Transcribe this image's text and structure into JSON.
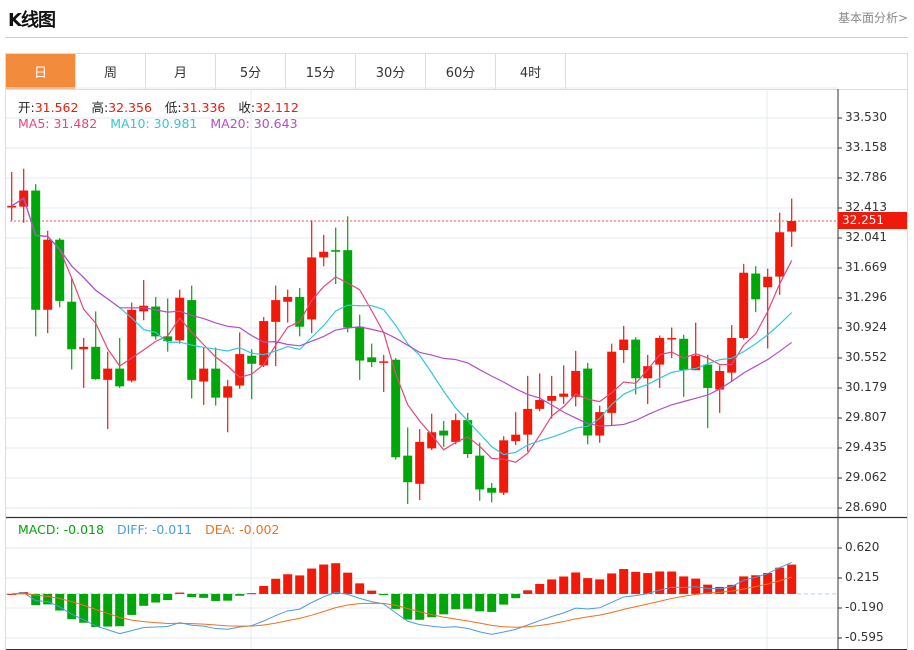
{
  "header": {
    "title": "K线图",
    "link": "基本面分析>"
  },
  "tabs": [
    {
      "label": "日",
      "active": true
    },
    {
      "label": "周"
    },
    {
      "label": "月"
    },
    {
      "label": "5分"
    },
    {
      "label": "15分"
    },
    {
      "label": "30分"
    },
    {
      "label": "60分"
    },
    {
      "label": "4时"
    }
  ],
  "info": {
    "open_label": "开:",
    "open": "31.562",
    "high_label": "高:",
    "high": "32.356",
    "low_label": "低:",
    "low": "31.336",
    "close_label": "收:",
    "close": "32.112"
  },
  "ma": {
    "ma5": "MA5: 31.482",
    "ma10": "MA10: 30.981",
    "ma20": "MA20: 30.643"
  },
  "macd": {
    "macd": "MACD: -0.018",
    "diff": "DIFF: -0.011",
    "dea": "DEA: -0.002"
  },
  "current_price": "32.251",
  "colors": {
    "up": "#f01a0a",
    "down": "#00a60a",
    "ma5": "#e8457c",
    "ma10": "#33c6dc",
    "ma20": "#b24fc6",
    "diff": "#4a9be8",
    "dea": "#f07020",
    "tab_active": "#f28b3c"
  },
  "chart_data": {
    "type": "candlestick",
    "price_axis": {
      "ticks": [
        "33.530",
        "33.158",
        "32.786",
        "32.413",
        "32.041",
        "31.669",
        "31.296",
        "30.924",
        "30.552",
        "30.179",
        "29.807",
        "29.435",
        "29.062",
        "28.690"
      ],
      "range": [
        28.69,
        33.53
      ]
    },
    "macd_axis": {
      "ticks": [
        "0.620",
        "0.215",
        "-0.190",
        "-0.595"
      ],
      "range": [
        -0.595,
        0.62
      ]
    },
    "indicators": [
      "MA5",
      "MA10",
      "MA20",
      "MACD(12,26,9)"
    ],
    "candles": [
      [
        32.42,
        32.86,
        32.26,
        32.44
      ],
      [
        32.43,
        32.9,
        32.23,
        32.63
      ],
      [
        32.63,
        32.71,
        30.82,
        31.15
      ],
      [
        31.15,
        32.13,
        30.86,
        32.02
      ],
      [
        32.02,
        32.04,
        31.18,
        31.26
      ],
      [
        31.25,
        31.54,
        30.41,
        30.66
      ],
      [
        30.66,
        30.8,
        30.18,
        30.69
      ],
      [
        30.69,
        31.13,
        30.28,
        30.29
      ],
      [
        30.28,
        30.63,
        29.67,
        30.42
      ],
      [
        30.42,
        30.8,
        30.18,
        30.2
      ],
      [
        30.27,
        31.24,
        30.25,
        31.15
      ],
      [
        31.13,
        31.52,
        31.02,
        31.2
      ],
      [
        31.19,
        31.31,
        30.78,
        30.82
      ],
      [
        30.82,
        31.29,
        30.63,
        30.76
      ],
      [
        30.77,
        31.4,
        30.73,
        31.3
      ],
      [
        31.27,
        31.45,
        30.05,
        30.28
      ],
      [
        30.26,
        30.68,
        29.97,
        30.42
      ],
      [
        30.42,
        30.68,
        29.96,
        30.06
      ],
      [
        30.06,
        30.28,
        29.63,
        30.2
      ],
      [
        30.21,
        30.87,
        30.17,
        30.6
      ],
      [
        30.58,
        30.66,
        30.04,
        30.48
      ],
      [
        30.46,
        31.06,
        30.44,
        31.01
      ],
      [
        31.0,
        31.45,
        30.45,
        31.27
      ],
      [
        31.25,
        31.4,
        30.99,
        31.31
      ],
      [
        31.31,
        31.42,
        30.82,
        30.94
      ],
      [
        31.03,
        32.26,
        30.86,
        31.8
      ],
      [
        31.8,
        32.08,
        31.69,
        31.87
      ],
      [
        31.89,
        32.17,
        31.47,
        31.87
      ],
      [
        31.89,
        32.31,
        30.87,
        30.93
      ],
      [
        30.94,
        31.09,
        30.28,
        30.52
      ],
      [
        30.56,
        30.73,
        30.44,
        30.5
      ],
      [
        30.5,
        30.59,
        30.13,
        30.51
      ],
      [
        30.53,
        30.55,
        29.29,
        29.32
      ],
      [
        29.34,
        29.69,
        28.74,
        29.01
      ],
      [
        28.99,
        29.67,
        28.79,
        29.51
      ],
      [
        29.43,
        29.86,
        29.41,
        29.63
      ],
      [
        29.65,
        29.77,
        29.45,
        29.59
      ],
      [
        29.51,
        29.86,
        29.48,
        29.78
      ],
      [
        29.78,
        29.87,
        29.31,
        29.36
      ],
      [
        29.34,
        29.5,
        28.78,
        28.92
      ],
      [
        28.94,
        29.0,
        28.76,
        28.88
      ],
      [
        28.88,
        29.58,
        28.85,
        29.53
      ],
      [
        29.52,
        29.88,
        29.47,
        29.6
      ],
      [
        29.6,
        30.33,
        29.39,
        29.92
      ],
      [
        29.92,
        30.36,
        29.89,
        30.03
      ],
      [
        30.02,
        30.33,
        29.8,
        30.08
      ],
      [
        30.07,
        30.46,
        29.98,
        30.11
      ],
      [
        30.07,
        30.64,
        29.95,
        30.39
      ],
      [
        30.42,
        30.49,
        29.48,
        29.59
      ],
      [
        29.59,
        29.96,
        29.5,
        29.88
      ],
      [
        29.87,
        30.73,
        29.71,
        30.63
      ],
      [
        30.65,
        30.95,
        30.49,
        30.78
      ],
      [
        30.78,
        30.81,
        30.1,
        30.3
      ],
      [
        30.3,
        30.59,
        29.98,
        30.45
      ],
      [
        30.47,
        30.83,
        30.18,
        30.8
      ],
      [
        30.79,
        30.93,
        30.55,
        30.8
      ],
      [
        30.79,
        30.84,
        30.07,
        30.4
      ],
      [
        30.4,
        30.99,
        30.4,
        30.58
      ],
      [
        30.47,
        30.59,
        29.68,
        30.18
      ],
      [
        30.16,
        30.46,
        29.87,
        30.39
      ],
      [
        30.37,
        30.96,
        30.26,
        30.8
      ],
      [
        30.8,
        31.72,
        30.78,
        31.61
      ],
      [
        31.6,
        31.69,
        31.12,
        31.28
      ],
      [
        31.43,
        31.66,
        30.67,
        31.56
      ],
      [
        31.562,
        32.356,
        31.336,
        32.112
      ],
      [
        32.12,
        32.53,
        31.93,
        32.251
      ]
    ],
    "candle_fields": [
      "open",
      "high",
      "low",
      "close"
    ]
  }
}
